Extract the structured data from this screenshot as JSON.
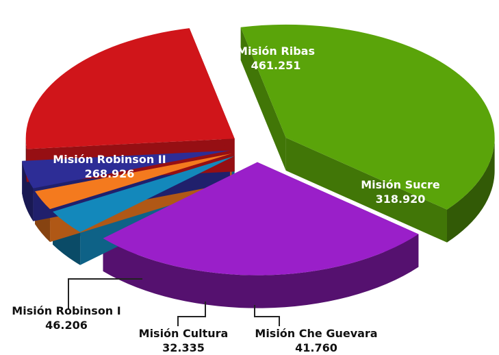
{
  "chart_data": {
    "type": "pie",
    "style": "exploded 3D",
    "title": "",
    "slices": [
      {
        "label": "Misión Ribas",
        "value": 461.251,
        "display": "461.251",
        "color": "#5aa40a"
      },
      {
        "label": "Misión Sucre",
        "value": 318.92,
        "display": "318.920",
        "color": "#9a1fc9"
      },
      {
        "label": "Misión Che Guevara",
        "value": 41.76,
        "display": "41.760",
        "color": "#1388bb"
      },
      {
        "label": "Misión Cultura",
        "value": 32.335,
        "display": "32.335",
        "color": "#f47a1e"
      },
      {
        "label": "Misión Robinson I",
        "value": 46.206,
        "display": "46.206",
        "color": "#2d2d96"
      },
      {
        "label": "Misión Robinson II",
        "value": 268.926,
        "display": "268.926",
        "color": "#d0151a"
      }
    ]
  }
}
